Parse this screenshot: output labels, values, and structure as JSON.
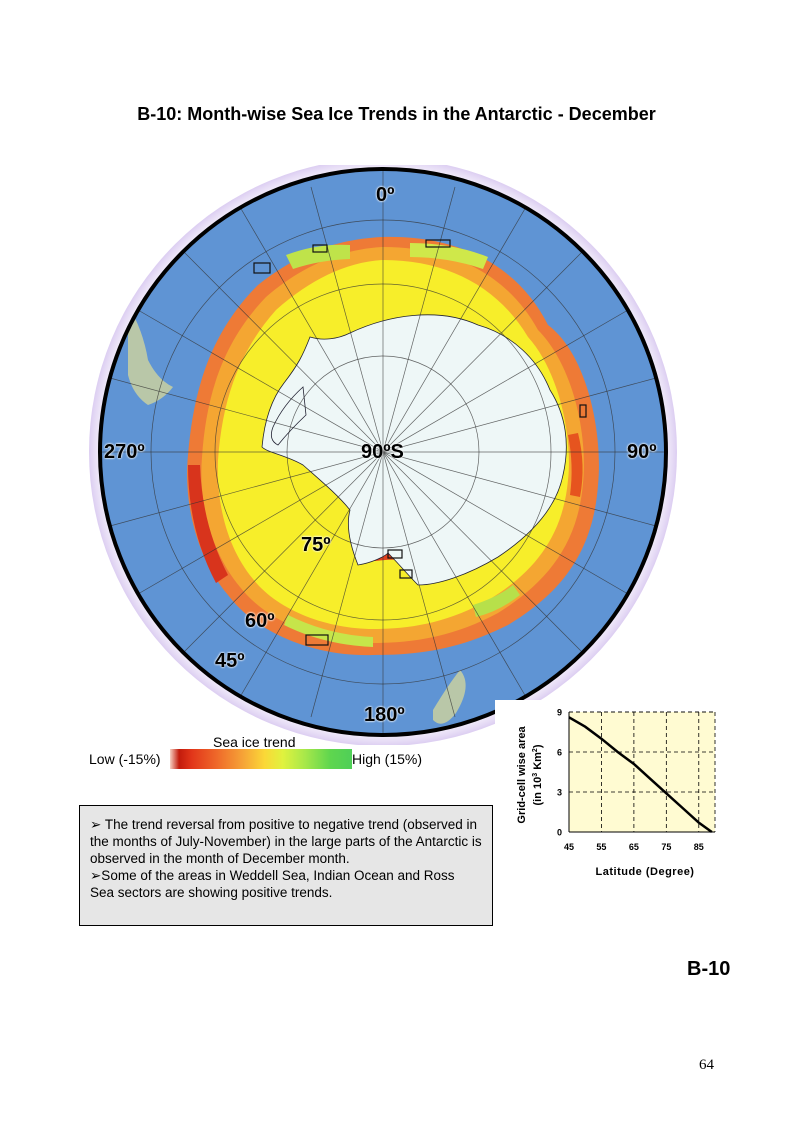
{
  "title": "B-10: Month-wise Sea Ice Trends in the Antarctic - December",
  "map": {
    "labels": {
      "top": "0º",
      "right": "90º",
      "left": "270º",
      "bottom": "180º",
      "center": "90ºS",
      "lat75": "75º",
      "lat60": "60º",
      "lat45": "45º"
    },
    "colors": {
      "ocean": "#5f94d4",
      "ice_trend_positive": "#f7ee2a",
      "ice_trend_negative": "#e9522a",
      "continent": "#eef7f7",
      "land": "#b9c7a8",
      "halo": "#ddd0f0"
    }
  },
  "legend": {
    "title": "Sea ice trend",
    "low": "Low (-15%)",
    "high": "High (15%)"
  },
  "chart_data": {
    "type": "line",
    "xlabel": "Latitude (Degree)",
    "ylabel_line1": "Grid-cell wise area",
    "ylabel_line2": "(in 10",
    "ylabel_sup": "3",
    "ylabel_line2_end": " Km",
    "ylabel_sup2": "2",
    "ylabel_close": ")",
    "xlim": [
      45,
      90
    ],
    "ylim": [
      0,
      9
    ],
    "xticks": [
      "45",
      "55",
      "65",
      "75",
      "85"
    ],
    "yticks": [
      "0",
      "3",
      "6",
      "9"
    ],
    "grid": "dashed",
    "series": [
      {
        "x": [
          45,
          50,
          55,
          60,
          65,
          70,
          75,
          80,
          85,
          89
        ],
        "y": [
          8.6,
          7.9,
          7.0,
          6.0,
          5.1,
          4.0,
          2.9,
          1.8,
          0.7,
          0.0
        ]
      }
    ]
  },
  "note": {
    "bullet1": "➢ The trend reversal from positive to negative trend (observed in the months of July-November) in the large parts of the Antarctic is observed in the month of December month.",
    "bullet2": "➢Some of the areas in Weddell Sea, Indian Ocean and Ross Sea sectors are showing positive trends."
  },
  "page_code": "B-10",
  "page_number": "64"
}
